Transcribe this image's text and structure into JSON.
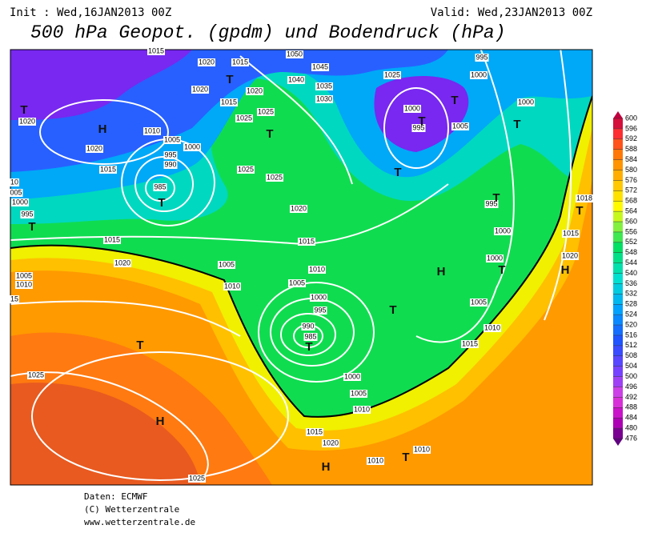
{
  "header": {
    "init": "Init : Wed,16JAN2013 00Z",
    "valid": "Valid: Wed,23JAN2013 00Z",
    "title": "500 hPa Geopot. (gpdm) und Bodendruck (hPa)"
  },
  "map": {
    "isobar_labels": [
      "1015",
      "1020",
      "1015",
      "1050",
      "1045",
      "995",
      "1000",
      "1025",
      "1040",
      "1035",
      "1020",
      "1020",
      "1015",
      "1030",
      "1000",
      "1000",
      "1020",
      "1025",
      "1025",
      "995",
      "1005",
      "1010",
      "1005",
      "1000",
      "1020",
      "995",
      "990",
      "1015",
      "1025",
      "1025",
      "985",
      "10",
      "005",
      "1000",
      "1020",
      "995",
      "995",
      "1018",
      "1000",
      "1015",
      "1015",
      "1015",
      "1020",
      "1005",
      "1010",
      "1000",
      "1020",
      "1005",
      "1010",
      "1010",
      "1005",
      "15",
      "1000",
      "995",
      "1005",
      "990",
      "985",
      "1010",
      "1000",
      "1015",
      "1025",
      "1005",
      "1010",
      "1015",
      "1020",
      "1010",
      "1010",
      "1025"
    ],
    "centers": [
      "T",
      "H",
      "T",
      "T",
      "T",
      "T",
      "T",
      "T",
      "T",
      "T",
      "T",
      "T",
      "H",
      "T",
      "H",
      "T",
      "T",
      "T",
      "H",
      "H",
      "T"
    ]
  },
  "colorbar": {
    "levels": [
      600,
      596,
      592,
      588,
      584,
      580,
      576,
      572,
      568,
      564,
      560,
      556,
      552,
      548,
      544,
      540,
      536,
      532,
      528,
      524,
      520,
      516,
      512,
      508,
      504,
      500,
      496,
      492,
      488,
      484,
      480,
      476
    ]
  },
  "footer": {
    "source": "Daten: ECMWF",
    "copyright": "(C) Wetterzentrale",
    "url": "www.wetterzentrale.de"
  }
}
